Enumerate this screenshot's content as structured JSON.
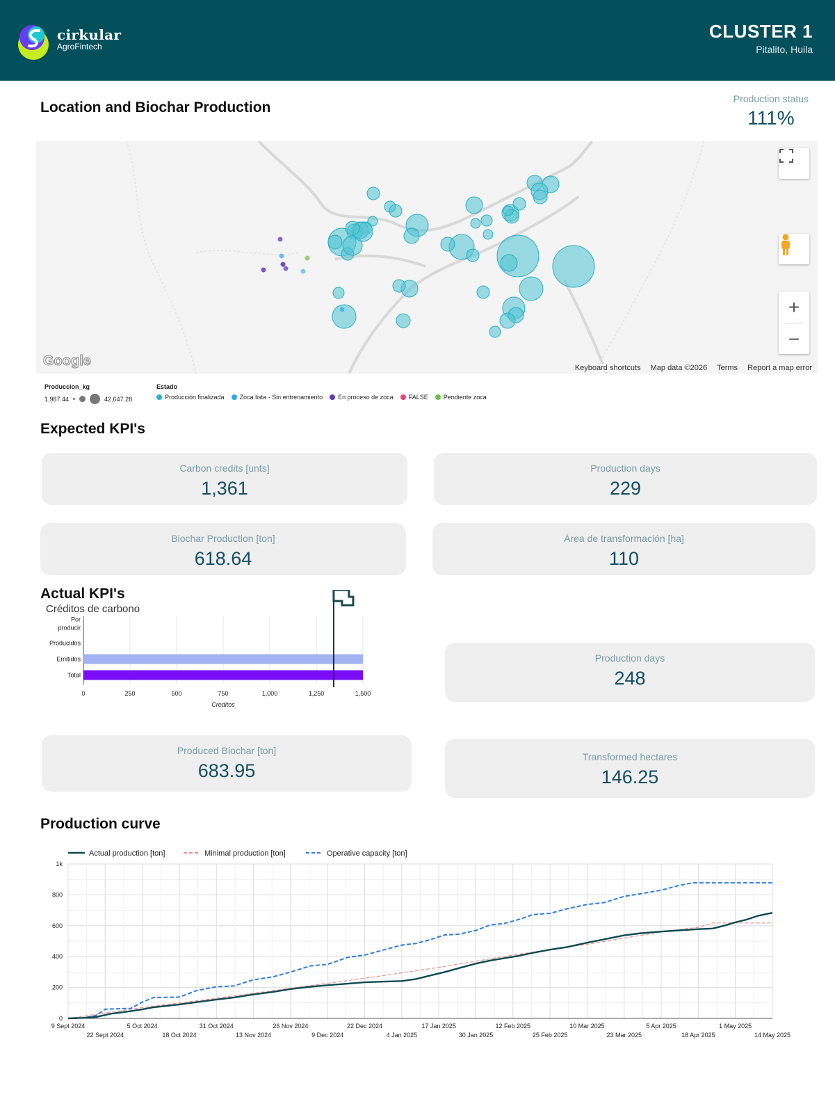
{
  "header": {
    "brand_name": "cirkular",
    "brand_sub": "AgroFintech",
    "cluster_title": "CLUSTER 1",
    "cluster_location": "Pitalito, Huila"
  },
  "location_section": {
    "title": "Location and Biochar Production",
    "status_label": "Production status",
    "status_value": "111%"
  },
  "map": {
    "google_logo": "Google",
    "footer": [
      "Keyboard shortcuts",
      "Map data ©2026",
      "Terms",
      "Report a map error"
    ],
    "fullscreen_icon": "fullscreen-icon",
    "pegman_icon": "pegman-icon",
    "zoom_in": "+",
    "zoom_out": "−"
  },
  "legend": {
    "size_title": "Produccion_kg",
    "size_min": "1,987.44",
    "size_max": "42,647.28",
    "estado_title": "Estado",
    "estado_items": [
      {
        "label": "Producción finalizada",
        "color": "#24b6c8"
      },
      {
        "label": "Zoca lista - Sin entrenamiento",
        "color": "#35a7e8"
      },
      {
        "label": "En proceso de zoca",
        "color": "#5f3bb5"
      },
      {
        "label": "FALSE",
        "color": "#ea3f78"
      },
      {
        "label": "Pendiente zoca",
        "color": "#6fbf4a"
      }
    ]
  },
  "expected": {
    "title": "Expected KPI's",
    "carbon_credits_label": "Carbon credits [unts]",
    "carbon_credits_value": "1,361",
    "production_days_label": "Production days",
    "production_days_value": "229",
    "biochar_label": "Biochar Production [ton]",
    "biochar_value": "618.64",
    "area_label": "Área de transformación [ha]",
    "area_value": "110"
  },
  "actual": {
    "title": "Actual KPI's",
    "bar_subtitle": "Créditos de carbono",
    "production_days_label": "Production days",
    "production_days_value": "248",
    "biochar_label": "Produced Biochar [ton]",
    "biochar_value": "683.95",
    "hectares_label": "Transformed hectares",
    "hectares_value": "146.25"
  },
  "curve": {
    "title": "Production curve"
  },
  "chart_data": [
    {
      "type": "bar",
      "orientation": "horizontal",
      "title": "Créditos de carbono",
      "categories": [
        "Por producir",
        "Producidos",
        "Emitidos",
        "Total"
      ],
      "values": [
        0,
        0,
        1500,
        1500
      ],
      "colors": [
        "#a4b3f2",
        "#a4b3f2",
        "#a4b3f2",
        "#7a0cf7"
      ],
      "xlabel": "Creditos",
      "xticks": [
        "0",
        "250",
        "500",
        "750",
        "1,000",
        "1,250",
        "1,500"
      ],
      "xlim": [
        0,
        1500
      ],
      "target_line": 1343
    },
    {
      "type": "line",
      "title": "Production curve",
      "ylim": [
        0,
        1000
      ],
      "yticks": [
        "0",
        "200",
        "400",
        "600",
        "800",
        "1k"
      ],
      "xrange_days": [
        0,
        247
      ],
      "xticks": [
        {
          "label": "9 Sept 2024",
          "day": 0
        },
        {
          "label": "22 Sept 2024",
          "day": 13
        },
        {
          "label": "5 Oct 2024",
          "day": 26
        },
        {
          "label": "18 Oct 2024",
          "day": 39
        },
        {
          "label": "31 Oct 2024",
          "day": 52
        },
        {
          "label": "13 Nov 2024",
          "day": 65
        },
        {
          "label": "26 Nov 2024",
          "day": 78
        },
        {
          "label": "9 Dec 2024",
          "day": 91
        },
        {
          "label": "22 Dec 2024",
          "day": 104
        },
        {
          "label": "4 Jan 2025",
          "day": 117
        },
        {
          "label": "17 Jan 2025",
          "day": 130
        },
        {
          "label": "30 Jan 2025",
          "day": 143
        },
        {
          "label": "12 Feb 2025",
          "day": 156
        },
        {
          "label": "25 Feb 2025",
          "day": 169
        },
        {
          "label": "10 Mar 2025",
          "day": 182
        },
        {
          "label": "23 Mar 2025",
          "day": 195
        },
        {
          "label": "5 Apr 2025",
          "day": 208
        },
        {
          "label": "18 Apr 2025",
          "day": 221
        },
        {
          "label": "1 May 2025",
          "day": 234
        },
        {
          "label": "14 May 2025",
          "day": 247
        }
      ],
      "series": [
        {
          "name": "Actual production [ton]",
          "color": "#0c4a52",
          "style": "solid",
          "points": [
            [
              0,
              0
            ],
            [
              5,
              3
            ],
            [
              10,
              10
            ],
            [
              15,
              30
            ],
            [
              20,
              42
            ],
            [
              26,
              58
            ],
            [
              30,
              72
            ],
            [
              35,
              82
            ],
            [
              39,
              90
            ],
            [
              45,
              105
            ],
            [
              52,
              122
            ],
            [
              58,
              135
            ],
            [
              65,
              155
            ],
            [
              72,
              172
            ],
            [
              78,
              190
            ],
            [
              85,
              205
            ],
            [
              91,
              215
            ],
            [
              98,
              225
            ],
            [
              104,
              234
            ],
            [
              110,
              238
            ],
            [
              117,
              242
            ],
            [
              122,
              255
            ],
            [
              127,
              278
            ],
            [
              132,
              300
            ],
            [
              137,
              325
            ],
            [
              143,
              355
            ],
            [
              148,
              375
            ],
            [
              153,
              390
            ],
            [
              158,
              405
            ],
            [
              163,
              425
            ],
            [
              169,
              445
            ],
            [
              175,
              462
            ],
            [
              182,
              490
            ],
            [
              188,
              512
            ],
            [
              195,
              538
            ],
            [
              201,
              552
            ],
            [
              208,
              562
            ],
            [
              214,
              570
            ],
            [
              221,
              578
            ],
            [
              226,
              582
            ],
            [
              230,
              600
            ],
            [
              234,
              622
            ],
            [
              238,
              640
            ],
            [
              242,
              665
            ],
            [
              247,
              684
            ]
          ]
        },
        {
          "name": "Minimal production [ton]",
          "color": "#f08b84",
          "style": "dash-thin",
          "points": [
            [
              0,
              0
            ],
            [
              26,
              70
            ],
            [
              52,
              130
            ],
            [
              78,
              195
            ],
            [
              104,
              260
            ],
            [
              130,
              330
            ],
            [
              156,
              410
            ],
            [
              182,
              480
            ],
            [
              208,
              560
            ],
            [
              221,
              590
            ],
            [
              226,
              618
            ],
            [
              247,
              618
            ]
          ]
        },
        {
          "name": "Operative capacity [ton]",
          "color": "#2f7de0",
          "style": "dash",
          "points": [
            [
              0,
              0
            ],
            [
              5,
              2
            ],
            [
              10,
              20
            ],
            [
              13,
              60
            ],
            [
              22,
              65
            ],
            [
              26,
              105
            ],
            [
              30,
              135
            ],
            [
              39,
              138
            ],
            [
              45,
              180
            ],
            [
              52,
              205
            ],
            [
              58,
              210
            ],
            [
              65,
              250
            ],
            [
              72,
              270
            ],
            [
              78,
              300
            ],
            [
              85,
              340
            ],
            [
              91,
              350
            ],
            [
              98,
              395
            ],
            [
              104,
              410
            ],
            [
              110,
              440
            ],
            [
              117,
              475
            ],
            [
              122,
              485
            ],
            [
              127,
              510
            ],
            [
              132,
              540
            ],
            [
              137,
              545
            ],
            [
              143,
              570
            ],
            [
              148,
              605
            ],
            [
              153,
              615
            ],
            [
              158,
              640
            ],
            [
              163,
              672
            ],
            [
              169,
              680
            ],
            [
              175,
              710
            ],
            [
              182,
              738
            ],
            [
              188,
              750
            ],
            [
              195,
              790
            ],
            [
              201,
              808
            ],
            [
              208,
              830
            ],
            [
              214,
              860
            ],
            [
              219,
              878
            ],
            [
              247,
              878
            ]
          ]
        }
      ]
    }
  ]
}
